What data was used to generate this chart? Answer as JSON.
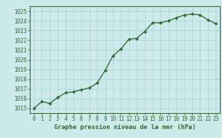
{
  "x": [
    0,
    1,
    2,
    3,
    4,
    5,
    6,
    7,
    8,
    9,
    10,
    11,
    12,
    13,
    14,
    15,
    16,
    17,
    18,
    19,
    20,
    21,
    22,
    23
  ],
  "y": [
    1015.0,
    1015.7,
    1015.5,
    1016.1,
    1016.6,
    1016.7,
    1016.9,
    1017.1,
    1017.6,
    1018.9,
    1020.4,
    1021.1,
    1022.1,
    1022.2,
    1022.9,
    1023.8,
    1023.8,
    1024.0,
    1024.3,
    1024.6,
    1024.7,
    1024.6,
    1024.1,
    1023.7
  ],
  "line_color": "#2d6a2d",
  "marker": "D",
  "marker_size": 2.2,
  "bg_color": "#cceaea",
  "grid_color": "#aad4d4",
  "xlabel": "Graphe pression niveau de la mer (hPa)",
  "xlabel_color": "#2d6a2d",
  "tick_color": "#2d6a2d",
  "ylim": [
    1014.5,
    1025.5
  ],
  "yticks": [
    1015,
    1016,
    1017,
    1018,
    1019,
    1020,
    1021,
    1022,
    1023,
    1024,
    1025
  ],
  "xlim": [
    -0.5,
    23.5
  ],
  "xticks": [
    0,
    1,
    2,
    3,
    4,
    5,
    6,
    7,
    8,
    9,
    10,
    11,
    12,
    13,
    14,
    15,
    16,
    17,
    18,
    19,
    20,
    21,
    22,
    23
  ],
  "xtick_labels": [
    "0",
    "1",
    "2",
    "3",
    "4",
    "5",
    "6",
    "7",
    "8",
    "9",
    "10",
    "11",
    "12",
    "13",
    "14",
    "15",
    "16",
    "17",
    "18",
    "19",
    "20",
    "21",
    "22",
    "23"
  ],
  "font_size_label": 6.5,
  "font_size_tick": 5.5,
  "line_width": 1.0,
  "axis_color": "#2d6a2d"
}
